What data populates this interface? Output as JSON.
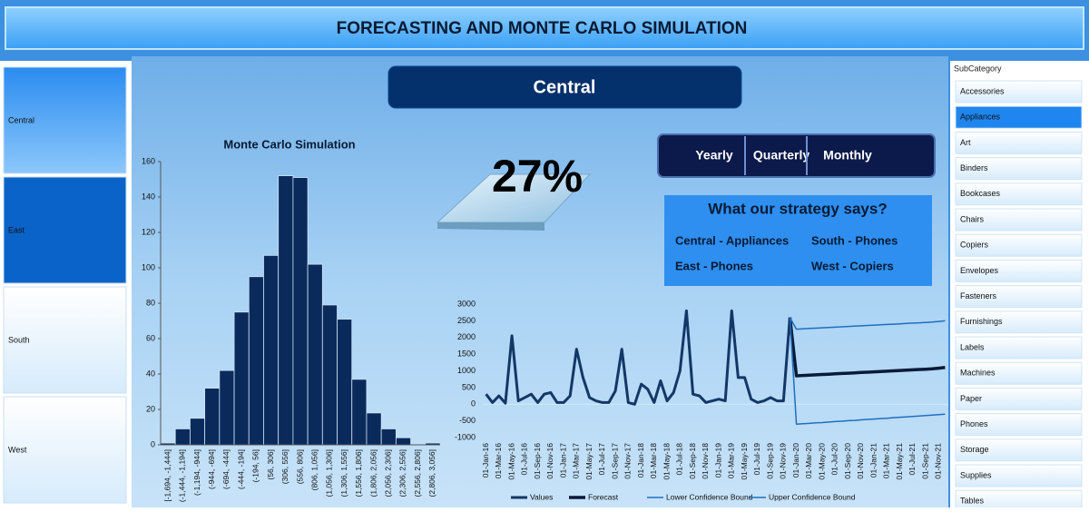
{
  "header": {
    "title": "FORECASTING AND MONTE CARLO SIMULATION"
  },
  "region_slicer": {
    "items": [
      "Central",
      "East",
      "South",
      "West"
    ]
  },
  "selected_region": "Central",
  "kpi": "27%",
  "period_buttons": [
    "Yearly",
    "Quarterly",
    "Monthly"
  ],
  "strategy": {
    "title": "What our strategy says?",
    "items": [
      "Central - Appliances",
      "South - Phones",
      "East - Phones",
      "West - Copiers"
    ]
  },
  "subcategory_slicer": {
    "title": "SubCategory",
    "items": [
      "Accessories",
      "Appliances",
      "Art",
      "Binders",
      "Bookcases",
      "Chairs",
      "Copiers",
      "Envelopes",
      "Fasteners",
      "Furnishings",
      "Labels",
      "Machines",
      "Paper",
      "Phones",
      "Storage",
      "Supplies",
      "Tables"
    ]
  },
  "chart_data": [
    {
      "type": "bar",
      "title": "Monte Carlo Simulation",
      "color": "#0b2a5c",
      "categories": [
        "[-1,694, -1,444]",
        "(-1,444, -1,194]",
        "(-1,194, -944]",
        "(-944, -694]",
        "(-694, -444]",
        "(-444, -194]",
        "(-194, 56]",
        "(56, 306]",
        "(306, 556]",
        "(556, 806]",
        "(806, 1,056]",
        "(1,056, 1,306]",
        "(1,306, 1,556]",
        "(1,556, 1,806]",
        "(1,806, 2,056]",
        "(2,056, 2,306]",
        "(2,306, 2,556]",
        "(2,556, 2,806]",
        "(2,806, 3,056]"
      ],
      "values": [
        1,
        9,
        15,
        32,
        42,
        75,
        95,
        107,
        152,
        151,
        102,
        79,
        71,
        37,
        18,
        9,
        4,
        0,
        1
      ],
      "ylim": [
        0,
        160
      ],
      "yticks": [
        0,
        20,
        40,
        60,
        80,
        100,
        120,
        140,
        160
      ],
      "grid": false
    },
    {
      "type": "line",
      "grid": false,
      "legend": "bottom",
      "categories": [
        "01-Jan-16",
        null,
        "01-Mar-16",
        null,
        "01-May-16",
        null,
        "01-Jul-16",
        null,
        "01-Sep-16",
        null,
        "01-Nov-16",
        null,
        "01-Jan-17",
        null,
        "01-Mar-17",
        null,
        "01-May-17",
        null,
        "01-Jul-17",
        null,
        "01-Sep-17",
        null,
        "01-Nov-17",
        null,
        "01-Jan-18",
        null,
        "01-Mar-18",
        null,
        "01-May-18",
        null,
        "01-Jul-18",
        null,
        "01-Sep-18",
        null,
        "01-Nov-18",
        null,
        "01-Jan-19",
        null,
        "01-Mar-19",
        null,
        "01-May-19",
        null,
        "01-Jul-19",
        null,
        "01-Sep-19",
        null,
        "01-Nov-19",
        null,
        "01-Jan-20",
        null,
        "01-Mar-20",
        null,
        "01-May-20",
        null,
        "01-Jul-20",
        null,
        "01-Sep-20",
        null,
        "01-Nov-20",
        null,
        "01-Jan-21",
        null,
        "01-Mar-21",
        null,
        "01-May-21",
        null,
        "01-Jul-21",
        null,
        "01-Sep-21",
        null,
        "01-Nov-21",
        null
      ],
      "series": [
        {
          "name": "Values",
          "color": "#133766",
          "width": 3,
          "values": [
            300,
            50,
            250,
            30,
            2050,
            100,
            200,
            300,
            50,
            300,
            350,
            50,
            50,
            250,
            1650,
            800,
            200,
            100,
            50,
            50,
            400,
            1650,
            50,
            0,
            600,
            450,
            50,
            700,
            100,
            350,
            1000,
            2800,
            300,
            250,
            50,
            100,
            150,
            100,
            2800,
            800,
            800,
            150,
            50,
            100,
            200,
            100,
            100,
            2600,
            null,
            null,
            null,
            null,
            null,
            null,
            null,
            null,
            null,
            null,
            null,
            null,
            null,
            null,
            null,
            null,
            null,
            null,
            null,
            null,
            null,
            null,
            null,
            null
          ]
        },
        {
          "name": "Forecast",
          "color": "#0a1a38",
          "width": 3.5,
          "values": [
            null,
            null,
            null,
            null,
            null,
            null,
            null,
            null,
            null,
            null,
            null,
            null,
            null,
            null,
            null,
            null,
            null,
            null,
            null,
            null,
            null,
            null,
            null,
            null,
            null,
            null,
            null,
            null,
            null,
            null,
            null,
            null,
            null,
            null,
            null,
            null,
            null,
            null,
            null,
            null,
            null,
            null,
            null,
            null,
            null,
            null,
            null,
            2600,
            850,
            860,
            870,
            880,
            890,
            900,
            910,
            920,
            930,
            940,
            950,
            960,
            970,
            980,
            990,
            1000,
            1010,
            1020,
            1030,
            1040,
            1050,
            1060,
            1080,
            1100
          ]
        },
        {
          "name": "Lower Confidence Bound",
          "color": "#1f6fc0",
          "width": 1.5,
          "values": [
            null,
            null,
            null,
            null,
            null,
            null,
            null,
            null,
            null,
            null,
            null,
            null,
            null,
            null,
            null,
            null,
            null,
            null,
            null,
            null,
            null,
            null,
            null,
            null,
            null,
            null,
            null,
            null,
            null,
            null,
            null,
            null,
            null,
            null,
            null,
            null,
            null,
            null,
            null,
            null,
            null,
            null,
            null,
            null,
            null,
            null,
            null,
            2600,
            -600,
            -585,
            -575,
            -560,
            -550,
            -535,
            -520,
            -510,
            -495,
            -485,
            -470,
            -455,
            -445,
            -430,
            -420,
            -405,
            -390,
            -380,
            -365,
            -355,
            -340,
            -325,
            -315,
            -300
          ]
        },
        {
          "name": "Upper Confidence Bound",
          "color": "#1f6fc0",
          "width": 1.5,
          "values": [
            null,
            null,
            null,
            null,
            null,
            null,
            null,
            null,
            null,
            null,
            null,
            null,
            null,
            null,
            null,
            null,
            null,
            null,
            null,
            null,
            null,
            null,
            null,
            null,
            null,
            null,
            null,
            null,
            null,
            null,
            null,
            null,
            null,
            null,
            null,
            null,
            null,
            null,
            null,
            null,
            null,
            null,
            null,
            null,
            null,
            null,
            null,
            2600,
            2250,
            2260,
            2270,
            2280,
            2290,
            2300,
            2310,
            2320,
            2330,
            2340,
            2350,
            2360,
            2370,
            2380,
            2390,
            2400,
            2410,
            2420,
            2430,
            2440,
            2450,
            2460,
            2480,
            2500
          ]
        }
      ],
      "ylim": [
        -1000,
        3000
      ],
      "yticks": [
        -1000,
        -500,
        0,
        500,
        1000,
        1500,
        2000,
        2500,
        3000
      ]
    }
  ]
}
